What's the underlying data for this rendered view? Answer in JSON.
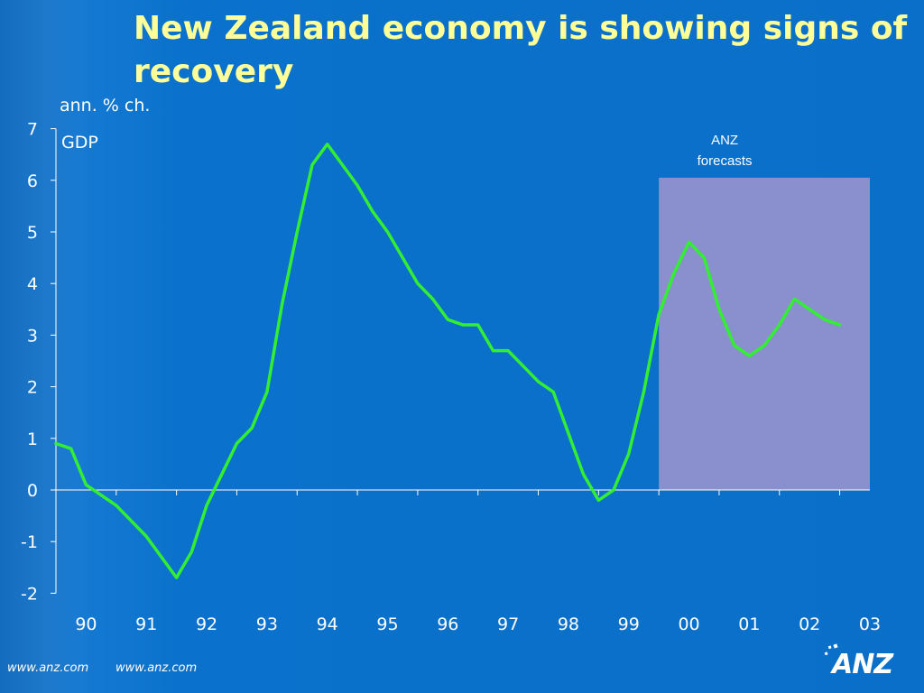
{
  "title": "New Zealand economy is showing signs of recovery",
  "footer": {
    "url_left": "www.anz.com",
    "url_right": "www.anz.com"
  },
  "logo_text": "ANZ",
  "colors": {
    "background": "#0a6fc8",
    "title": "#ffff99",
    "line": "#33ee33",
    "forecast_band": "#8a8fce",
    "axis": "#ffffff"
  },
  "chart_data": {
    "type": "line",
    "title": "",
    "ylabel": "ann. % ch.",
    "xlabel": "",
    "ylim": [
      -2,
      7
    ],
    "yticks": [
      7,
      6,
      5,
      4,
      3,
      2,
      1,
      0,
      -1,
      -2
    ],
    "xlim": [
      1990,
      2003.5
    ],
    "xtick_labels": [
      "90",
      "91",
      "92",
      "93",
      "94",
      "95",
      "96",
      "97",
      "98",
      "99",
      "00",
      "01",
      "02",
      "03"
    ],
    "grid": false,
    "series": [
      {
        "name": "GDP",
        "x": [
          1990.0,
          1990.25,
          1990.5,
          1990.75,
          1991.0,
          1991.25,
          1991.5,
          1991.75,
          1992.0,
          1992.25,
          1992.5,
          1992.75,
          1993.0,
          1993.25,
          1993.5,
          1993.75,
          1994.0,
          1994.25,
          1994.5,
          1994.75,
          1995.0,
          1995.25,
          1995.5,
          1995.75,
          1996.0,
          1996.25,
          1996.5,
          1996.75,
          1997.0,
          1997.25,
          1997.5,
          1997.75,
          1998.0,
          1998.25,
          1998.5,
          1998.75,
          1999.0,
          1999.25,
          1999.5,
          1999.75,
          2000.0,
          2000.25,
          2000.5,
          2000.75,
          2001.0,
          2001.25,
          2001.5,
          2001.75,
          2002.0,
          2002.25,
          2002.5,
          2002.75,
          2003.0
        ],
        "values": [
          0.9,
          0.8,
          0.1,
          -0.1,
          -0.3,
          -0.6,
          -0.9,
          -1.3,
          -1.7,
          -1.2,
          -0.3,
          0.3,
          0.9,
          1.2,
          1.9,
          3.6,
          5.0,
          6.3,
          6.7,
          6.3,
          5.9,
          5.4,
          5.0,
          4.5,
          4.0,
          3.7,
          3.3,
          3.2,
          3.2,
          2.7,
          2.7,
          2.4,
          2.1,
          1.9,
          1.1,
          0.3,
          -0.2,
          0.0,
          0.7,
          1.9,
          3.4,
          4.2,
          4.8,
          4.5,
          3.5,
          2.8,
          2.6,
          2.8,
          3.2,
          3.7,
          3.5,
          3.3,
          3.2
        ]
      }
    ],
    "forecast_band": {
      "x_start": 2000.0,
      "x_end": 2003.5,
      "y_top": 6.05,
      "label_line1": "ANZ",
      "label_line2": "forecasts"
    }
  }
}
